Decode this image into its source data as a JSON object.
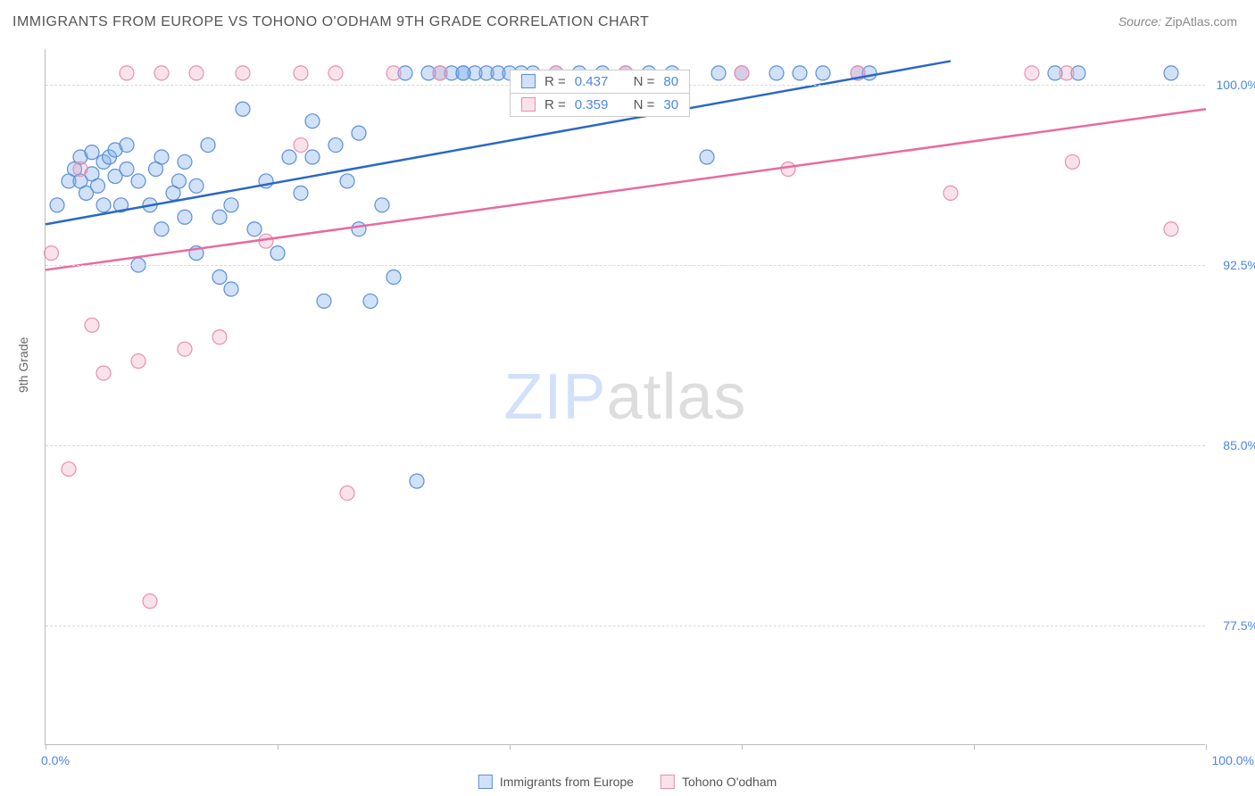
{
  "title": "IMMIGRANTS FROM EUROPE VS TOHONO O'ODHAM 9TH GRADE CORRELATION CHART",
  "source_label": "Source:",
  "source_name": "ZipAtlas.com",
  "ylabel": "9th Grade",
  "watermark_zip": "ZIP",
  "watermark_atlas": "atlas",
  "chart": {
    "type": "scatter",
    "background_color": "#ffffff",
    "grid_color": "#d8d8d8",
    "axis_color": "#bbbbbb",
    "label_color": "#4a86e8",
    "xlim": [
      0,
      100
    ],
    "ylim": [
      72.5,
      101.5
    ],
    "yticks": [
      77.5,
      85.0,
      92.5,
      100.0
    ],
    "ytick_labels": [
      "77.5%",
      "85.0%",
      "92.5%",
      "100.0%"
    ],
    "xticks": [
      0,
      20,
      40,
      60,
      80,
      100
    ],
    "xtick_labels_shown": {
      "0": "0.0%",
      "100": "100.0%"
    },
    "marker_radius": 8,
    "marker_stroke_width": 1.2,
    "trendline_width": 2.5,
    "series": [
      {
        "name": "Immigrants from Europe",
        "fill": "rgba(120,170,235,0.35)",
        "stroke": "#5b8fd6",
        "line_color": "#2b68c4",
        "R": 0.437,
        "N": 80,
        "trend": {
          "x1": 0,
          "y1": 94.2,
          "x2": 78,
          "y2": 101.0
        },
        "points": [
          [
            1,
            95.0
          ],
          [
            2,
            96.0
          ],
          [
            2.5,
            96.5
          ],
          [
            3,
            97.0
          ],
          [
            3,
            96.0
          ],
          [
            3.5,
            95.5
          ],
          [
            4,
            97.2
          ],
          [
            4,
            96.3
          ],
          [
            4.5,
            95.8
          ],
          [
            5,
            96.8
          ],
          [
            5,
            95.0
          ],
          [
            5.5,
            97.0
          ],
          [
            6,
            96.2
          ],
          [
            6,
            97.3
          ],
          [
            6.5,
            95.0
          ],
          [
            7,
            96.5
          ],
          [
            7,
            97.5
          ],
          [
            8,
            92.5
          ],
          [
            8,
            96.0
          ],
          [
            9,
            95.0
          ],
          [
            9.5,
            96.5
          ],
          [
            10,
            97.0
          ],
          [
            10,
            94.0
          ],
          [
            11,
            95.5
          ],
          [
            11.5,
            96.0
          ],
          [
            12,
            94.5
          ],
          [
            12,
            96.8
          ],
          [
            13,
            95.8
          ],
          [
            13,
            93.0
          ],
          [
            14,
            97.5
          ],
          [
            15,
            94.5
          ],
          [
            15,
            92.0
          ],
          [
            16,
            95.0
          ],
          [
            16,
            91.5
          ],
          [
            17,
            99.0
          ],
          [
            18,
            94.0
          ],
          [
            19,
            96.0
          ],
          [
            20,
            93.0
          ],
          [
            21,
            97.0
          ],
          [
            22,
            95.5
          ],
          [
            23,
            98.5
          ],
          [
            23,
            97.0
          ],
          [
            24,
            91.0
          ],
          [
            25,
            97.5
          ],
          [
            26,
            96.0
          ],
          [
            27,
            94.0
          ],
          [
            27,
            98.0
          ],
          [
            28,
            91.0
          ],
          [
            29,
            95.0
          ],
          [
            30,
            92.0
          ],
          [
            31,
            100.5
          ],
          [
            32,
            83.5
          ],
          [
            33,
            100.5
          ],
          [
            34,
            100.5
          ],
          [
            35,
            100.5
          ],
          [
            36,
            100.5
          ],
          [
            37,
            100.5
          ],
          [
            38,
            100.5
          ],
          [
            39,
            100.5
          ],
          [
            40,
            100.5
          ],
          [
            41,
            100.5
          ],
          [
            42,
            100.5
          ],
          [
            44,
            100.5
          ],
          [
            46,
            100.5
          ],
          [
            48,
            100.5
          ],
          [
            50,
            100.5
          ],
          [
            52,
            100.5
          ],
          [
            54,
            100.5
          ],
          [
            57,
            97.0
          ],
          [
            58,
            100.5
          ],
          [
            60,
            100.5
          ],
          [
            63,
            100.5
          ],
          [
            65,
            100.5
          ],
          [
            67,
            100.5
          ],
          [
            70,
            100.5
          ],
          [
            71,
            100.5
          ],
          [
            87,
            100.5
          ],
          [
            89,
            100.5
          ],
          [
            97,
            100.5
          ],
          [
            36,
            100.5
          ]
        ]
      },
      {
        "name": "Tohono O'odham",
        "fill": "rgba(240,160,190,0.30)",
        "stroke": "#e68fb0",
        "line_color": "#e76ba0",
        "R": 0.359,
        "N": 30,
        "trend": {
          "x1": 0,
          "y1": 92.3,
          "x2": 100,
          "y2": 99.0
        },
        "points": [
          [
            0.5,
            93.0
          ],
          [
            2,
            84.0
          ],
          [
            3,
            96.5
          ],
          [
            4,
            90.0
          ],
          [
            5,
            88.0
          ],
          [
            7,
            100.5
          ],
          [
            8,
            88.5
          ],
          [
            9,
            78.5
          ],
          [
            10,
            100.5
          ],
          [
            12,
            89.0
          ],
          [
            13,
            100.5
          ],
          [
            15,
            89.5
          ],
          [
            17,
            100.5
          ],
          [
            19,
            93.5
          ],
          [
            22,
            100.5
          ],
          [
            22,
            97.5
          ],
          [
            25,
            100.5
          ],
          [
            26,
            83.0
          ],
          [
            30,
            100.5
          ],
          [
            34,
            100.5
          ],
          [
            44,
            100.5
          ],
          [
            50,
            100.5
          ],
          [
            60,
            100.5
          ],
          [
            64,
            96.5
          ],
          [
            70,
            100.5
          ],
          [
            78,
            95.5
          ],
          [
            85,
            100.5
          ],
          [
            88,
            100.5
          ],
          [
            88.5,
            96.8
          ],
          [
            97,
            94.0
          ]
        ]
      }
    ]
  },
  "top_legend": {
    "R_label": "R =",
    "N_label": "N ="
  },
  "bottom_legend": {
    "items": [
      "Immigrants from Europe",
      "Tohono O'odham"
    ]
  }
}
